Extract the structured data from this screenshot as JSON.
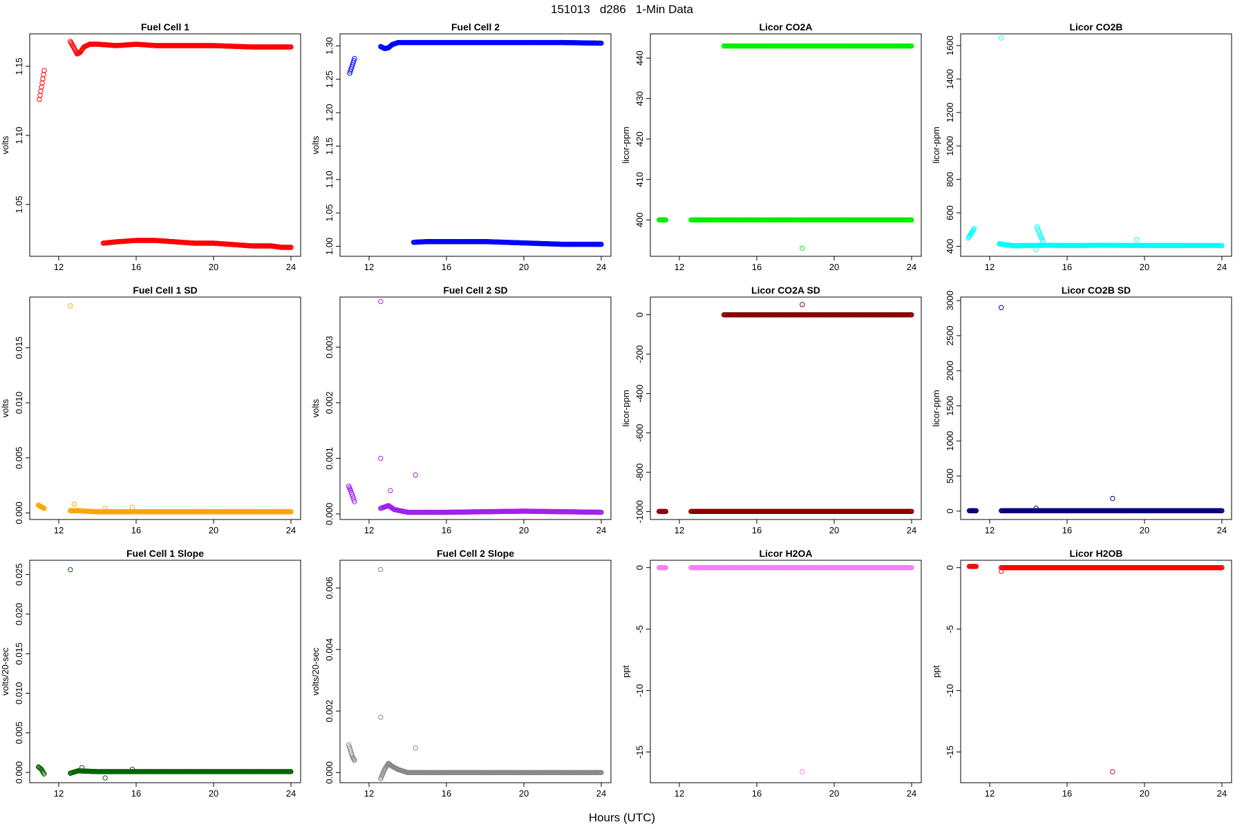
{
  "figure": {
    "title": "151013   d286   1-Min Data",
    "xlabel": "Hours (UTC)"
  },
  "chart_data": [
    {
      "type": "scatter",
      "title": "Fuel Cell 1",
      "ylabel": "volts",
      "color": "#ff0000",
      "xlim": [
        10.5,
        24.5
      ],
      "ylim": [
        1.0125,
        1.1735
      ],
      "xticks": [
        12,
        16,
        20,
        24
      ],
      "yticks": [
        1.05,
        1.1,
        1.15
      ],
      "segments": [
        {
          "x": [
            11.0,
            11.25
          ],
          "y": [
            1.126,
            1.147
          ]
        },
        {
          "x": [
            12.6,
            12.8,
            12.95,
            13.1,
            13.3,
            13.6,
            14.0,
            15.0,
            16.0,
            17.0,
            18.0,
            20.0,
            22.0,
            24.0
          ],
          "y": [
            1.168,
            1.163,
            1.159,
            1.16,
            1.164,
            1.166,
            1.166,
            1.165,
            1.166,
            1.165,
            1.165,
            1.165,
            1.164,
            1.164
          ]
        },
        {
          "x": [
            14.3,
            15.0,
            16.0,
            17.0,
            18.0,
            19.0,
            20.0,
            21.0,
            22.0,
            23.0,
            23.5,
            24.0
          ],
          "y": [
            1.022,
            1.023,
            1.024,
            1.024,
            1.023,
            1.022,
            1.022,
            1.021,
            1.02,
            1.02,
            1.019,
            1.019
          ]
        }
      ],
      "outliers": []
    },
    {
      "type": "scatter",
      "title": "Fuel Cell 2",
      "ylabel": "volts",
      "color": "#0000ff",
      "xlim": [
        10.5,
        24.5
      ],
      "ylim": [
        0.985,
        1.318
      ],
      "xticks": [
        12,
        16,
        20,
        24
      ],
      "yticks": [
        1.0,
        1.05,
        1.1,
        1.15,
        1.2,
        1.25,
        1.3
      ],
      "segments": [
        {
          "x": [
            11.0,
            11.25
          ],
          "y": [
            1.259,
            1.281
          ]
        },
        {
          "x": [
            12.6,
            12.8,
            13.0,
            13.2,
            13.5,
            14.0,
            15.0,
            16.0,
            18.0,
            20.0,
            22.0,
            24.0
          ],
          "y": [
            1.299,
            1.296,
            1.297,
            1.302,
            1.305,
            1.305,
            1.305,
            1.305,
            1.305,
            1.305,
            1.305,
            1.304
          ]
        },
        {
          "x": [
            14.3,
            15.0,
            16.0,
            17.0,
            18.0,
            19.0,
            20.0,
            21.0,
            22.0,
            23.0,
            24.0
          ],
          "y": [
            1.006,
            1.007,
            1.007,
            1.007,
            1.007,
            1.006,
            1.005,
            1.004,
            1.003,
            1.003,
            1.003
          ]
        }
      ],
      "outliers": []
    },
    {
      "type": "scatter",
      "title": "Licor CO2A",
      "ylabel": "licor-ppm",
      "color": "#00ee00",
      "xlim": [
        10.5,
        24.5
      ],
      "ylim": [
        391,
        446
      ],
      "xticks": [
        12,
        16,
        20,
        24
      ],
      "yticks": [
        400,
        410,
        420,
        430,
        440
      ],
      "segments": [
        {
          "x": [
            10.95,
            11.3
          ],
          "y": [
            400,
            400
          ]
        },
        {
          "x": [
            12.6,
            24.0
          ],
          "y": [
            400,
            400
          ]
        },
        {
          "x": [
            14.3,
            24.0
          ],
          "y": [
            443,
            443
          ]
        }
      ],
      "outliers": [
        {
          "x": 18.35,
          "y": 393
        }
      ]
    },
    {
      "type": "scatter",
      "title": "Licor CO2B",
      "ylabel": "licor-ppm",
      "color": "#00ffff",
      "xlim": [
        10.5,
        24.5
      ],
      "ylim": [
        340,
        1670
      ],
      "xticks": [
        12,
        16,
        20,
        24
      ],
      "yticks": [
        400,
        600,
        800,
        1000,
        1200,
        1400,
        1600
      ],
      "segments": [
        {
          "x": [
            10.9,
            11.2
          ],
          "y": [
            450,
            505
          ]
        },
        {
          "x": [
            12.5,
            12.9,
            13.3,
            14.0,
            15.0,
            16.0,
            18.0,
            20.0,
            22.0,
            24.0
          ],
          "y": [
            415,
            408,
            403,
            405,
            406,
            405,
            406,
            405,
            405,
            404
          ]
        },
        {
          "x": [
            14.45,
            14.6,
            14.75
          ],
          "y": [
            515,
            470,
            430
          ]
        }
      ],
      "outliers": [
        {
          "x": 12.6,
          "y": 1645
        },
        {
          "x": 14.4,
          "y": 380
        },
        {
          "x": 19.6,
          "y": 440
        }
      ]
    },
    {
      "type": "scatter",
      "title": "Fuel Cell 1 SD",
      "ylabel": "volts",
      "color": "#ffa500",
      "xlim": [
        10.5,
        24.5
      ],
      "ylim": [
        -0.0006,
        0.0196
      ],
      "xticks": [
        12,
        16,
        20,
        24
      ],
      "yticks": [
        0.0,
        0.005,
        0.01,
        0.015
      ],
      "segments": [
        {
          "x": [
            10.95,
            11.25
          ],
          "y": [
            0.0007,
            0.0004
          ]
        },
        {
          "x": [
            12.6,
            13.0,
            14.0,
            16.0,
            20.0,
            24.0
          ],
          "y": [
            0.0002,
            0.0002,
            0.0001,
            0.0001,
            0.0001,
            0.0001
          ]
        }
      ],
      "outliers": [
        {
          "x": 12.6,
          "y": 0.0188
        },
        {
          "x": 12.8,
          "y": 0.0008
        },
        {
          "x": 14.4,
          "y": 0.0004
        },
        {
          "x": 15.8,
          "y": 0.0005
        }
      ]
    },
    {
      "type": "scatter",
      "title": "Fuel Cell 2 SD",
      "ylabel": "volts",
      "color": "#a020f0",
      "xlim": [
        10.5,
        24.5
      ],
      "ylim": [
        -0.0001,
        0.0039
      ],
      "xticks": [
        12,
        16,
        20,
        24
      ],
      "yticks": [
        0.0,
        0.001,
        0.002,
        0.003
      ],
      "segments": [
        {
          "x": [
            10.95,
            11.05,
            11.15,
            11.25
          ],
          "y": [
            0.0005,
            0.00042,
            0.00032,
            0.00022
          ]
        },
        {
          "x": [
            12.6,
            13.0,
            13.3,
            14.0,
            16.0,
            18.0,
            20.0,
            22.0,
            24.0
          ],
          "y": [
            0.0001,
            0.00015,
            8e-05,
            3e-05,
            3e-05,
            4e-05,
            5e-05,
            4e-05,
            3e-05
          ]
        }
      ],
      "outliers": [
        {
          "x": 12.6,
          "y": 0.00382
        },
        {
          "x": 12.6,
          "y": 0.001
        },
        {
          "x": 13.1,
          "y": 0.00042
        },
        {
          "x": 14.4,
          "y": 0.0007
        }
      ]
    },
    {
      "type": "scatter",
      "title": "Licor CO2A SD",
      "ylabel": "licor-ppm",
      "color": "#8b0000",
      "xlim": [
        10.5,
        24.5
      ],
      "ylim": [
        -1040,
        90
      ],
      "xticks": [
        12,
        16,
        20,
        24
      ],
      "yticks": [
        -1000,
        -800,
        -600,
        -400,
        -200,
        0
      ],
      "segments": [
        {
          "x": [
            10.95,
            11.3
          ],
          "y": [
            -999,
            -999
          ]
        },
        {
          "x": [
            12.6,
            24.0
          ],
          "y": [
            -999,
            -999
          ]
        },
        {
          "x": [
            14.3,
            24.0
          ],
          "y": [
            0,
            0
          ]
        }
      ],
      "outliers": [
        {
          "x": 18.35,
          "y": 52
        }
      ]
    },
    {
      "type": "scatter",
      "title": "Licor CO2B SD",
      "ylabel": "licor-ppm",
      "color": "#000080",
      "xlim": [
        10.5,
        24.5
      ],
      "ylim": [
        -120,
        3050
      ],
      "xticks": [
        12,
        16,
        20,
        24
      ],
      "yticks": [
        0,
        500,
        1000,
        1500,
        2000,
        2500,
        3000
      ],
      "segments": [
        {
          "x": [
            10.95,
            11.3
          ],
          "y": [
            5,
            5
          ]
        },
        {
          "x": [
            12.6,
            24.0
          ],
          "y": [
            5,
            5
          ]
        }
      ],
      "outliers": [
        {
          "x": 12.6,
          "y": 2900
        },
        {
          "x": 14.4,
          "y": 40
        },
        {
          "x": 18.35,
          "y": 180
        }
      ]
    },
    {
      "type": "scatter",
      "title": "Fuel Cell 1 Slope",
      "ylabel": "volts/20-sec",
      "color": "#006400",
      "xlim": [
        10.5,
        24.5
      ],
      "ylim": [
        -0.0013,
        0.0268
      ],
      "xticks": [
        12,
        16,
        20,
        24
      ],
      "yticks": [
        0.0,
        0.005,
        0.01,
        0.015,
        0.02,
        0.025
      ],
      "segments": [
        {
          "x": [
            10.95,
            11.1,
            11.25
          ],
          "y": [
            0.0007,
            0.0004,
            -0.0002
          ]
        },
        {
          "x": [
            12.6,
            13.0,
            14.0,
            16.0,
            20.0,
            24.0
          ],
          "y": [
            -0.0001,
            0.0002,
            0.0001,
            0.0001,
            0.0001,
            0.0001
          ]
        }
      ],
      "outliers": [
        {
          "x": 12.6,
          "y": 0.0256
        },
        {
          "x": 13.2,
          "y": 0.0006
        },
        {
          "x": 14.4,
          "y": -0.0007
        },
        {
          "x": 15.8,
          "y": 0.0004
        }
      ]
    },
    {
      "type": "scatter",
      "title": "Fuel Cell 2 Slope",
      "ylabel": "volts/20-sec",
      "color": "#888888",
      "xlim": [
        10.5,
        24.5
      ],
      "ylim": [
        -0.00033,
        0.0069
      ],
      "xticks": [
        12,
        16,
        20,
        24
      ],
      "yticks": [
        0.0,
        0.002,
        0.004,
        0.006
      ],
      "segments": [
        {
          "x": [
            10.95,
            11.05,
            11.15,
            11.25
          ],
          "y": [
            0.0009,
            0.0007,
            0.0005,
            0.0004
          ]
        },
        {
          "x": [
            12.6,
            12.8,
            13.0,
            13.2,
            13.5,
            14.0,
            16.0,
            18.0,
            20.0,
            22.0,
            24.0
          ],
          "y": [
            -0.0002,
            0.0001,
            0.0003,
            0.0002,
            0.0001,
            0.0,
            0.0,
            0.0,
            0.0,
            0.0,
            0.0
          ]
        }
      ],
      "outliers": [
        {
          "x": 12.6,
          "y": 0.0066
        },
        {
          "x": 12.6,
          "y": 0.0018
        },
        {
          "x": 14.4,
          "y": 0.0008
        }
      ]
    },
    {
      "type": "scatter",
      "title": "Licor H2OA",
      "ylabel": "ppt",
      "color": "#ee82ee",
      "xlim": [
        10.5,
        24.5
      ],
      "ylim": [
        -17.5,
        0.6
      ],
      "xticks": [
        12,
        16,
        20,
        24
      ],
      "yticks": [
        0,
        -5,
        -10,
        -15
      ],
      "segments": [
        {
          "x": [
            10.95,
            11.3
          ],
          "y": [
            0,
            0
          ]
        },
        {
          "x": [
            12.6,
            24.0
          ],
          "y": [
            0,
            0
          ]
        }
      ],
      "outliers": [
        {
          "x": 18.35,
          "y": -16.6
        }
      ]
    },
    {
      "type": "scatter",
      "title": "Licor H2OB",
      "ylabel": "ppt",
      "color": "#ff0000",
      "xlim": [
        10.5,
        24.5
      ],
      "ylim": [
        -17.5,
        0.6
      ],
      "xticks": [
        12,
        16,
        20,
        24
      ],
      "yticks": [
        0,
        -5,
        -10,
        -15
      ],
      "segments": [
        {
          "x": [
            10.95,
            11.3
          ],
          "y": [
            0.1,
            0.1
          ]
        },
        {
          "x": [
            12.6,
            24.0
          ],
          "y": [
            0.0,
            0.0
          ]
        }
      ],
      "outliers": [
        {
          "x": 12.6,
          "y": -0.3
        },
        {
          "x": 18.35,
          "y": -16.6
        }
      ]
    }
  ]
}
